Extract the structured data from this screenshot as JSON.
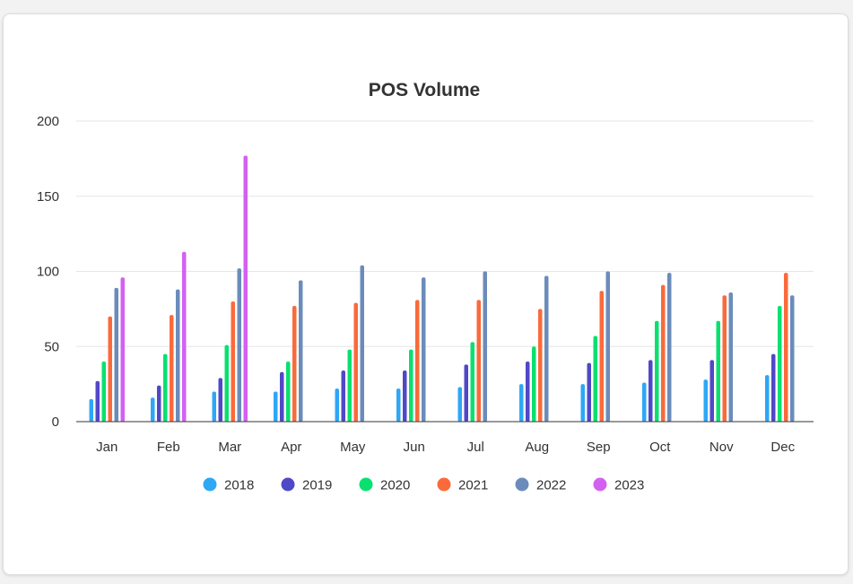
{
  "chart_data": {
    "type": "bar",
    "title": "POS Volume",
    "xlabel": "",
    "ylabel": "",
    "ylim": [
      0,
      200
    ],
    "yticks": [
      0,
      50,
      100,
      150,
      200
    ],
    "grid": true,
    "legend_position": "bottom",
    "categories": [
      "Jan",
      "Feb",
      "Mar",
      "Apr",
      "May",
      "Jun",
      "Jul",
      "Aug",
      "Sep",
      "Oct",
      "Nov",
      "Dec"
    ],
    "series": [
      {
        "name": "2018",
        "color": "#2ea7f5",
        "values": [
          15,
          16,
          20,
          20,
          22,
          22,
          23,
          25,
          25,
          26,
          28,
          31
        ]
      },
      {
        "name": "2019",
        "color": "#4f48c7",
        "values": [
          27,
          24,
          29,
          33,
          34,
          34,
          38,
          40,
          39,
          41,
          41,
          45
        ]
      },
      {
        "name": "2020",
        "color": "#0ae06f",
        "values": [
          40,
          45,
          51,
          40,
          48,
          48,
          53,
          50,
          57,
          67,
          67,
          77
        ]
      },
      {
        "name": "2021",
        "color": "#fa6a3b",
        "values": [
          70,
          71,
          80,
          77,
          79,
          81,
          81,
          75,
          87,
          91,
          84,
          99
        ]
      },
      {
        "name": "2022",
        "color": "#6b8cba",
        "values": [
          89,
          88,
          102,
          94,
          104,
          96,
          100,
          97,
          100,
          99,
          86,
          84
        ]
      },
      {
        "name": "2023",
        "color": "#d361f0",
        "values": [
          96,
          113,
          177,
          null,
          null,
          null,
          null,
          null,
          null,
          null,
          null,
          null
        ]
      }
    ]
  }
}
